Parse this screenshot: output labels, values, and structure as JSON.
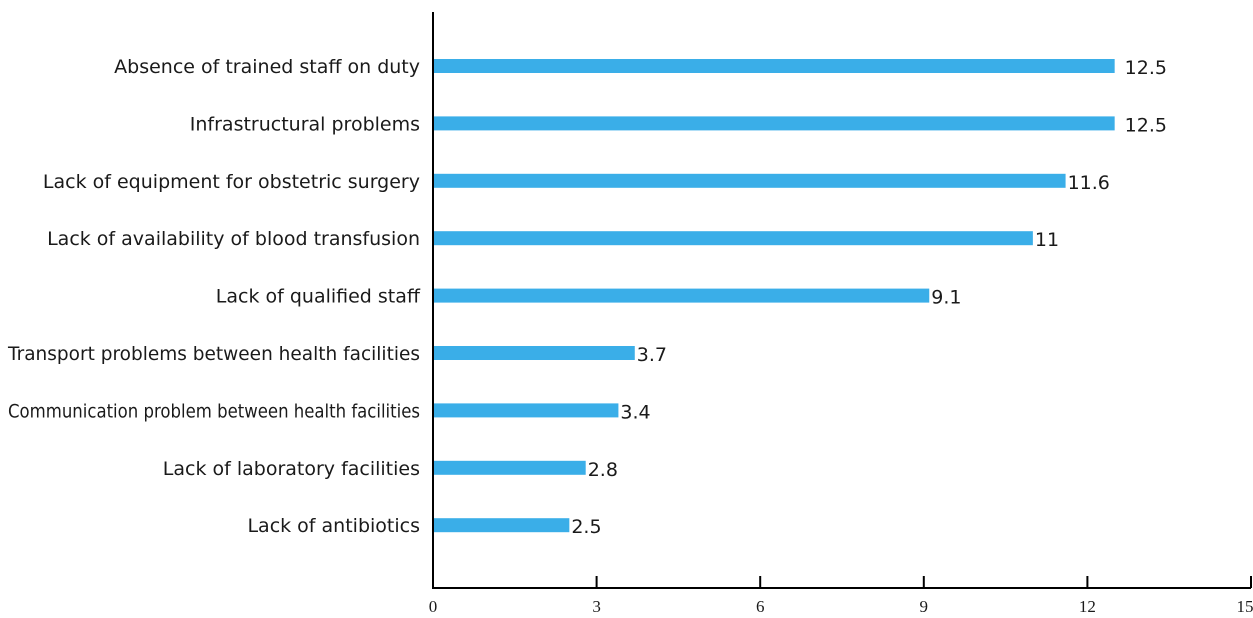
{
  "chart_data": {
    "type": "bar",
    "orientation": "horizontal",
    "title": "",
    "xlabel": "",
    "ylabel": "",
    "categories": [
      "Absence of trained staff on duty",
      "Infrastructural problems",
      "Lack of equipment for obstetric surgery",
      "Lack of availability of blood transfusion",
      "Lack of qualified staff",
      "Transport problems between health facilities",
      "Communication problem between health facilities",
      "Lack of laboratory facilities",
      "Lack of antibiotics"
    ],
    "values": [
      12.5,
      12.5,
      11.6,
      11,
      9.1,
      3.7,
      3.4,
      2.8,
      2.5
    ],
    "value_labels": [
      "12.5",
      "12.5",
      "11.6",
      "11",
      "9.1",
      "3.7",
      "3.4",
      "2.8",
      "2.5"
    ],
    "xlim": [
      0,
      15
    ],
    "xticks": [
      0,
      3,
      6,
      9,
      12,
      15
    ],
    "xtick_labels": [
      "0",
      "3",
      "6",
      "9",
      "12",
      "15"
    ],
    "grid": false,
    "legend": "none",
    "bar_color": "#3aaee8"
  }
}
